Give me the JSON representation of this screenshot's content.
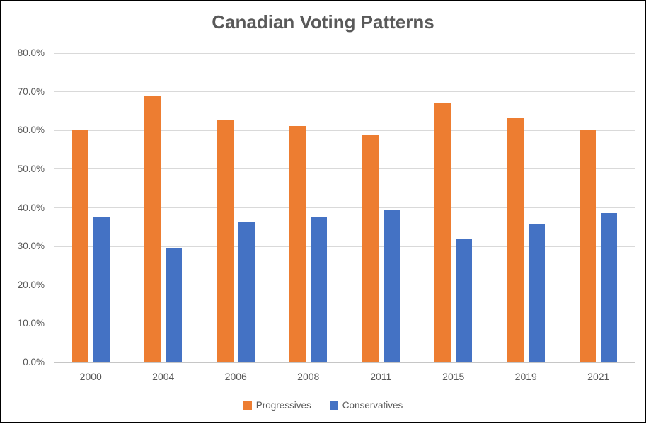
{
  "chart_data": {
    "type": "bar",
    "title": "Canadian Voting Patterns",
    "categories": [
      "2000",
      "2004",
      "2006",
      "2008",
      "2011",
      "2015",
      "2019",
      "2021"
    ],
    "series": [
      {
        "name": "Progressives",
        "color": "#ED7D31",
        "values": [
          60.1,
          69.1,
          62.6,
          61.2,
          59.0,
          67.2,
          63.1,
          60.2
        ]
      },
      {
        "name": "Conservatives",
        "color": "#4472C4",
        "values": [
          37.7,
          29.6,
          36.3,
          37.6,
          39.6,
          31.8,
          35.9,
          38.7
        ]
      }
    ],
    "xlabel": "",
    "ylabel": "",
    "ylim": [
      0,
      80
    ],
    "ytick_step": 10,
    "yticks": [
      "0.0%",
      "10.0%",
      "20.0%",
      "30.0%",
      "40.0%",
      "50.0%",
      "60.0%",
      "70.0%",
      "80.0%"
    ],
    "grid": true,
    "legend_position": "bottom"
  },
  "styles": {
    "text_color": "#595959",
    "gridline_color": "#D9D9D9",
    "axis_line_color": "#C6C6C6",
    "frame_border_color": "#000000",
    "background_color": "#FFFFFF"
  }
}
